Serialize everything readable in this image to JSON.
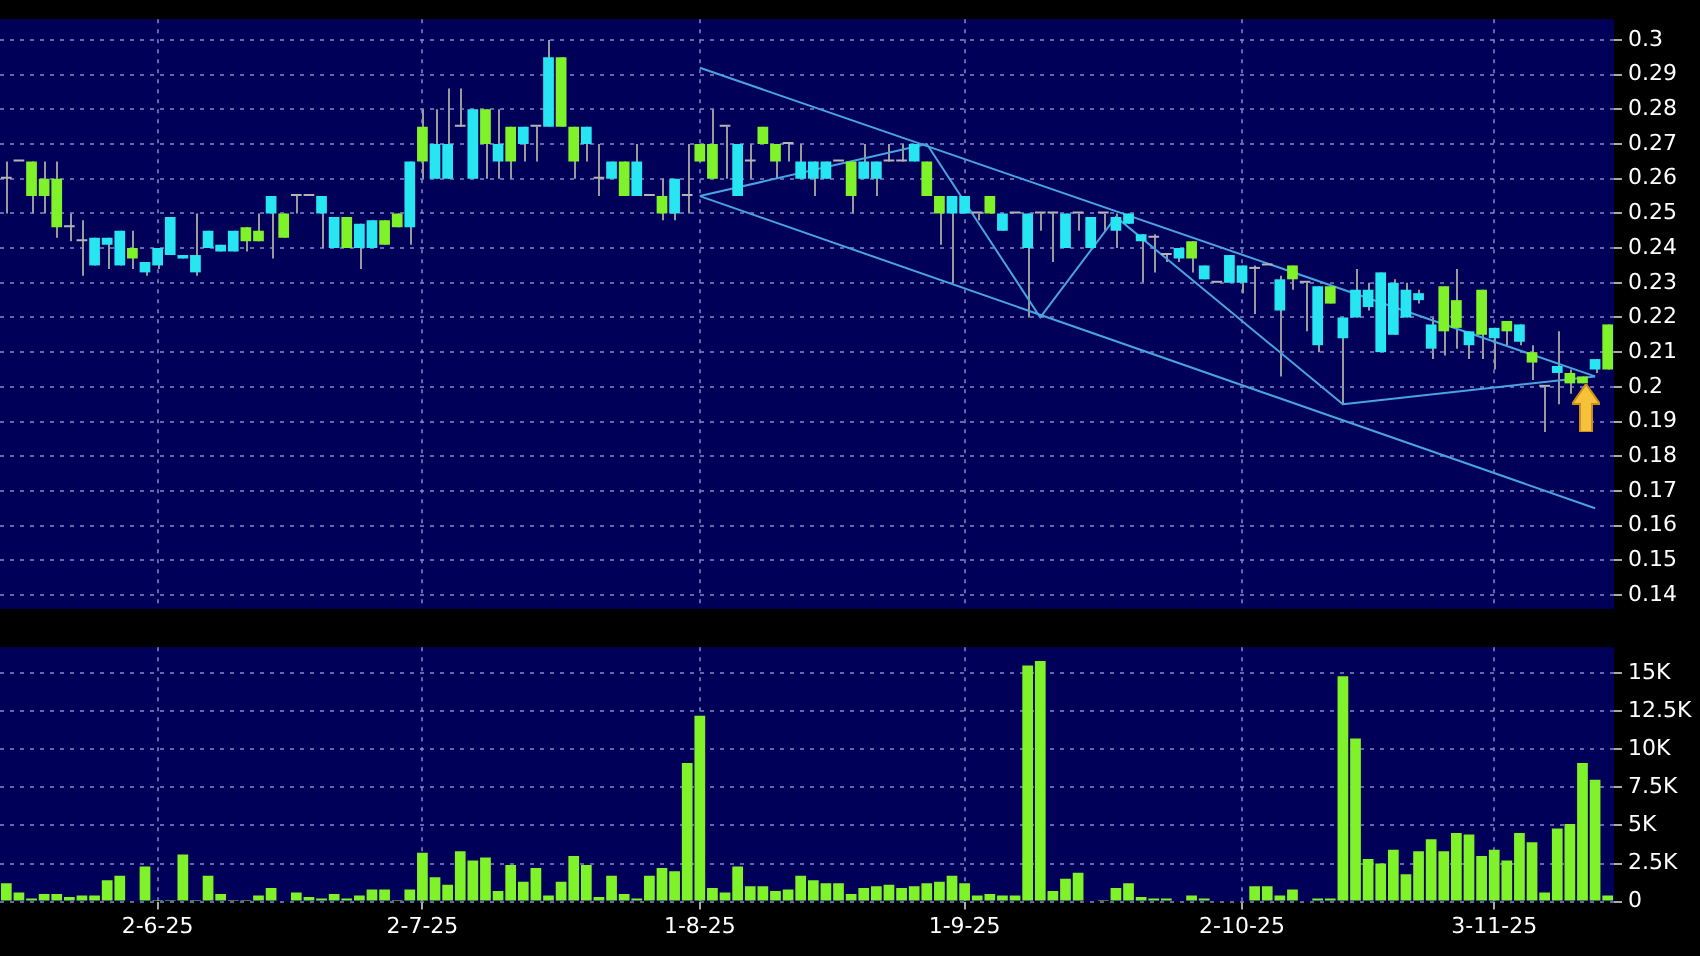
{
  "chart_data": [
    {
      "type": "candlestick",
      "categories": [
        null,
        null,
        null,
        null,
        null,
        null,
        null,
        null,
        null,
        null,
        null,
        null,
        null,
        null,
        null,
        null,
        null,
        null,
        null,
        null,
        null,
        null,
        null,
        null,
        null,
        null,
        null,
        null,
        null,
        null,
        null,
        null,
        null,
        null,
        null,
        null,
        null,
        null,
        null,
        null,
        null,
        null,
        null,
        null,
        null,
        null,
        null,
        null,
        null,
        null,
        null,
        null,
        null,
        null,
        null,
        null,
        null,
        null,
        null,
        null,
        null,
        null,
        null,
        null,
        null,
        null,
        null,
        null,
        null,
        null,
        null,
        null,
        null,
        null,
        null,
        null,
        null,
        null,
        null,
        null,
        null,
        null,
        null,
        null,
        null,
        null,
        null,
        null,
        null,
        null,
        null,
        null,
        null,
        null,
        null,
        null,
        null,
        null,
        null,
        null,
        null,
        null,
        null,
        null,
        null,
        null,
        null,
        null,
        null,
        null,
        null,
        null,
        null,
        null,
        null,
        null,
        null,
        null,
        null,
        null,
        null,
        null,
        null,
        null,
        null,
        null,
        null,
        null
      ],
      "ohlc": [
        [
          0.26,
          0.265,
          0.25,
          0.26
        ],
        [
          0.265,
          0.265,
          0.265,
          0.265
        ],
        [
          0.255,
          0.265,
          0.25,
          0.265
        ],
        [
          0.255,
          0.265,
          0.25,
          0.26
        ],
        [
          0.246,
          0.265,
          0.243,
          0.26
        ],
        [
          0.246,
          0.25,
          0.242,
          0.246
        ],
        [
          0.242,
          0.248,
          0.232,
          0.242
        ],
        [
          0.243,
          0.243,
          0.235,
          0.235
        ],
        [
          0.243,
          0.243,
          0.234,
          0.241
        ],
        [
          0.245,
          0.245,
          0.235,
          0.235
        ],
        [
          0.237,
          0.245,
          0.234,
          0.24
        ],
        [
          0.236,
          0.236,
          0.232,
          0.233
        ],
        [
          0.24,
          0.24,
          0.234,
          0.235
        ],
        [
          0.249,
          0.249,
          0.238,
          0.238
        ],
        [
          0.238,
          0.238,
          0.237,
          0.237
        ],
        [
          0.238,
          0.25,
          0.232,
          0.233
        ],
        [
          0.245,
          0.245,
          0.24,
          0.24
        ],
        [
          0.241,
          0.241,
          0.239,
          0.239
        ],
        [
          0.245,
          0.245,
          0.239,
          0.239
        ],
        [
          0.242,
          0.246,
          0.239,
          0.246
        ],
        [
          0.242,
          0.25,
          0.242,
          0.245
        ],
        [
          0.255,
          0.255,
          0.237,
          0.25
        ],
        [
          0.243,
          0.25,
          0.243,
          0.25
        ],
        [
          0.255,
          0.255,
          0.25,
          0.255
        ],
        [
          0.255,
          0.255,
          0.255,
          0.255
        ],
        [
          0.255,
          0.255,
          0.24,
          0.25
        ],
        [
          0.249,
          0.249,
          0.24,
          0.24
        ],
        [
          0.24,
          0.249,
          0.24,
          0.249
        ],
        [
          0.247,
          0.247,
          0.234,
          0.24
        ],
        [
          0.248,
          0.248,
          0.24,
          0.24
        ],
        [
          0.241,
          0.248,
          0.241,
          0.248
        ],
        [
          0.246,
          0.25,
          0.246,
          0.25
        ],
        [
          0.265,
          0.265,
          0.241,
          0.246
        ],
        [
          0.265,
          0.28,
          0.26,
          0.275
        ],
        [
          0.27,
          0.28,
          0.26,
          0.26
        ],
        [
          0.27,
          0.286,
          0.26,
          0.26
        ],
        [
          0.275,
          0.286,
          0.275,
          0.275
        ],
        [
          0.28,
          0.28,
          0.26,
          0.26
        ],
        [
          0.27,
          0.28,
          0.26,
          0.28
        ],
        [
          0.27,
          0.28,
          0.26,
          0.265
        ],
        [
          0.265,
          0.275,
          0.26,
          0.275
        ],
        [
          0.275,
          0.275,
          0.265,
          0.27
        ],
        [
          0.275,
          0.275,
          0.265,
          0.275
        ],
        [
          0.295,
          0.3,
          0.275,
          0.275
        ],
        [
          0.275,
          0.295,
          0.275,
          0.295
        ],
        [
          0.265,
          0.275,
          0.26,
          0.275
        ],
        [
          0.275,
          0.275,
          0.265,
          0.27
        ],
        [
          0.26,
          0.27,
          0.255,
          0.26
        ],
        [
          0.265,
          0.265,
          0.26,
          0.26
        ],
        [
          0.255,
          0.265,
          0.255,
          0.265
        ],
        [
          0.265,
          0.27,
          0.255,
          0.255
        ],
        [
          0.255,
          0.255,
          0.255,
          0.255
        ],
        [
          0.25,
          0.26,
          0.248,
          0.255
        ],
        [
          0.26,
          0.26,
          0.248,
          0.25
        ],
        [
          0.255,
          0.27,
          0.25,
          0.255
        ],
        [
          0.265,
          0.27,
          0.265,
          0.27
        ],
        [
          0.26,
          0.28,
          0.26,
          0.27
        ],
        [
          0.275,
          0.275,
          0.26,
          0.275
        ],
        [
          0.27,
          0.27,
          0.255,
          0.255
        ],
        [
          0.265,
          0.27,
          0.26,
          0.265
        ],
        [
          0.27,
          0.275,
          0.27,
          0.275
        ],
        [
          0.265,
          0.27,
          0.26,
          0.27
        ],
        [
          0.27,
          0.27,
          0.265,
          0.27
        ],
        [
          0.265,
          0.27,
          0.26,
          0.26
        ],
        [
          0.265,
          0.265,
          0.255,
          0.26
        ],
        [
          0.265,
          0.265,
          0.26,
          0.26
        ],
        [
          0.265,
          0.265,
          0.265,
          0.265
        ],
        [
          0.255,
          0.265,
          0.25,
          0.265
        ],
        [
          0.265,
          0.27,
          0.26,
          0.26
        ],
        [
          0.265,
          0.265,
          0.255,
          0.26
        ],
        [
          0.265,
          0.27,
          0.265,
          0.265
        ],
        [
          0.265,
          0.27,
          0.265,
          0.265
        ],
        [
          0.27,
          0.27,
          0.265,
          0.265
        ],
        [
          0.255,
          0.265,
          0.255,
          0.265
        ],
        [
          0.25,
          0.255,
          0.241,
          0.255
        ],
        [
          0.255,
          0.255,
          0.23,
          0.25
        ],
        [
          0.255,
          0.255,
          0.25,
          0.25
        ],
        [
          0.25,
          0.25,
          0.248,
          0.25
        ],
        [
          0.25,
          0.255,
          0.25,
          0.255
        ],
        [
          0.25,
          0.25,
          0.245,
          0.245
        ],
        [
          0.25,
          0.25,
          0.25,
          0.25
        ],
        [
          0.25,
          0.25,
          0.22,
          0.24
        ],
        [
          0.25,
          0.25,
          0.245,
          0.25
        ],
        [
          0.25,
          0.25,
          0.236,
          0.25
        ],
        [
          0.25,
          0.25,
          0.24,
          0.24
        ],
        [
          0.25,
          0.25,
          0.245,
          0.25
        ],
        [
          0.249,
          0.249,
          0.24,
          0.24
        ],
        [
          0.25,
          0.25,
          0.245,
          0.25
        ],
        [
          0.249,
          0.25,
          0.24,
          0.245
        ],
        [
          0.25,
          0.25,
          0.247,
          0.247
        ],
        [
          0.244,
          0.244,
          0.23,
          0.242
        ],
        [
          0.243,
          0.244,
          0.233,
          0.243
        ],
        [
          0.238,
          0.238,
          0.236,
          0.238
        ],
        [
          0.24,
          0.24,
          0.236,
          0.237
        ],
        [
          0.237,
          0.242,
          0.233,
          0.242
        ],
        [
          0.235,
          0.235,
          0.231,
          0.231
        ],
        [
          0.23,
          0.23,
          0.23,
          0.23
        ],
        [
          0.238,
          0.238,
          0.23,
          0.23
        ],
        [
          0.235,
          0.235,
          0.227,
          0.23
        ],
        [
          0.234,
          0.235,
          0.221,
          0.234
        ],
        [
          0.235,
          0.235,
          0.235,
          0.235
        ],
        [
          0.231,
          0.232,
          0.203,
          0.222
        ],
        [
          0.231,
          0.235,
          0.228,
          0.235
        ],
        [
          0.23,
          0.23,
          0.216,
          0.23
        ],
        [
          0.229,
          0.229,
          0.21,
          0.212
        ],
        [
          0.224,
          0.229,
          0.224,
          0.229
        ],
        [
          0.22,
          0.22,
          0.195,
          0.214
        ],
        [
          0.228,
          0.234,
          0.22,
          0.22
        ],
        [
          0.228,
          0.23,
          0.222,
          0.223
        ],
        [
          0.233,
          0.233,
          0.21,
          0.21
        ],
        [
          0.23,
          0.231,
          0.215,
          0.215
        ],
        [
          0.228,
          0.23,
          0.22,
          0.22
        ],
        [
          0.227,
          0.228,
          0.224,
          0.225
        ],
        [
          0.218,
          0.22,
          0.208,
          0.211
        ],
        [
          0.216,
          0.229,
          0.209,
          0.229
        ],
        [
          0.217,
          0.234,
          0.211,
          0.225
        ],
        [
          0.216,
          0.216,
          0.208,
          0.212
        ],
        [
          0.215,
          0.228,
          0.208,
          0.228
        ],
        [
          0.217,
          0.217,
          0.205,
          0.214
        ],
        [
          0.216,
          0.219,
          0.212,
          0.219
        ],
        [
          0.218,
          0.218,
          0.212,
          0.213
        ],
        [
          0.207,
          0.212,
          0.202,
          0.21
        ],
        [
          0.2,
          0.2,
          0.187,
          0.2
        ],
        [
          0.206,
          0.216,
          0.195,
          0.204
        ],
        [
          0.201,
          0.205,
          0.198,
          0.204
        ],
        [
          0.201,
          0.203,
          0.201,
          0.203
        ],
        [
          0.208,
          0.208,
          0.204,
          0.205
        ],
        [
          0.205,
          0.218,
          0.205,
          0.218
        ]
      ],
      "colors": [
        "#b4b4b4",
        "#b4b4b4",
        "#7ff22a",
        "#7ff22a",
        "#7ff22a",
        "#b4b4b4",
        "#b4b4b4",
        "#27e6f2",
        "#27e6f2",
        "#27e6f2",
        "#7ff22a",
        "#27e6f2",
        "#27e6f2",
        "#27e6f2",
        "#27e6f2",
        "#27e6f2",
        "#27e6f2",
        "#27e6f2",
        "#27e6f2",
        "#7ff22a",
        "#7ff22a",
        "#27e6f2",
        "#7ff22a",
        "#b4b4b4",
        "#b4b4b4",
        "#27e6f2",
        "#27e6f2",
        "#7ff22a",
        "#27e6f2",
        "#27e6f2",
        "#7ff22a",
        "#7ff22a",
        "#27e6f2",
        "#7ff22a",
        "#27e6f2",
        "#27e6f2",
        "#b4b4b4",
        "#27e6f2",
        "#7ff22a",
        "#27e6f2",
        "#7ff22a",
        "#27e6f2",
        "#b4b4b4",
        "#27e6f2",
        "#7ff22a",
        "#7ff22a",
        "#27e6f2",
        "#b4b4b4",
        "#27e6f2",
        "#7ff22a",
        "#27e6f2",
        "#b4b4b4",
        "#7ff22a",
        "#27e6f2",
        "#b4b4b4",
        "#7ff22a",
        "#7ff22a",
        "#b4b4b4",
        "#27e6f2",
        "#b4b4b4",
        "#7ff22a",
        "#7ff22a",
        "#b4b4b4",
        "#27e6f2",
        "#27e6f2",
        "#27e6f2",
        "#b4b4b4",
        "#7ff22a",
        "#27e6f2",
        "#27e6f2",
        "#b4b4b4",
        "#b4b4b4",
        "#27e6f2",
        "#7ff22a",
        "#7ff22a",
        "#27e6f2",
        "#27e6f2",
        "#b4b4b4",
        "#7ff22a",
        "#27e6f2",
        "#b4b4b4",
        "#27e6f2",
        "#b4b4b4",
        "#b4b4b4",
        "#27e6f2",
        "#b4b4b4",
        "#27e6f2",
        "#b4b4b4",
        "#27e6f2",
        "#27e6f2",
        "#27e6f2",
        "#b4b4b4",
        "#b4b4b4",
        "#27e6f2",
        "#7ff22a",
        "#27e6f2",
        "#b4b4b4",
        "#27e6f2",
        "#27e6f2",
        "#b4b4b4",
        "#b4b4b4",
        "#27e6f2",
        "#7ff22a",
        "#b4b4b4",
        "#27e6f2",
        "#7ff22a",
        "#27e6f2",
        "#27e6f2",
        "#27e6f2",
        "#27e6f2",
        "#27e6f2",
        "#27e6f2",
        "#27e6f2",
        "#27e6f2",
        "#7ff22a",
        "#7ff22a",
        "#27e6f2",
        "#7ff22a",
        "#27e6f2",
        "#7ff22a",
        "#27e6f2",
        "#7ff22a",
        "#b4b4b4",
        "#27e6f2",
        "#7ff22a",
        "#7ff22a",
        "#27e6f2",
        "#7ff22a"
      ],
      "series": [
        {
          "type": "line",
          "color": "#4aa3df",
          "values": [
            null,
            null,
            null,
            null,
            null,
            null,
            null,
            null,
            null,
            null,
            null,
            null,
            null,
            null,
            null,
            null,
            null,
            null,
            null,
            null,
            null,
            null,
            null,
            null,
            null,
            null,
            null,
            null,
            null,
            null,
            null,
            null,
            null,
            null,
            null,
            null,
            null,
            null,
            null,
            null,
            null,
            null,
            null,
            null,
            null,
            null,
            null,
            null,
            null,
            null,
            null,
            null,
            null,
            null,
            null,
            0.292,
            null,
            null,
            null,
            null,
            null,
            null,
            null,
            null,
            null,
            null,
            null,
            null,
            null,
            null,
            null,
            null,
            null,
            null,
            null,
            null,
            null,
            null,
            null,
            null,
            null,
            null,
            null,
            null,
            null,
            null,
            null,
            null,
            null,
            null,
            null,
            null,
            null,
            null,
            null,
            null,
            null,
            null,
            null,
            null,
            null,
            null,
            null,
            null,
            null,
            null,
            null,
            null,
            null,
            null,
            null,
            null,
            null,
            null,
            null,
            null,
            null,
            null,
            null,
            null,
            null,
            null,
            null,
            null,
            null,
            null,
            0.203,
            null
          ]
        },
        {
          "type": "line",
          "color": "#4aa3df",
          "values": [
            null,
            null,
            null,
            null,
            null,
            null,
            null,
            null,
            null,
            null,
            null,
            null,
            null,
            null,
            null,
            null,
            null,
            null,
            null,
            null,
            null,
            null,
            null,
            null,
            null,
            null,
            null,
            null,
            null,
            null,
            null,
            null,
            null,
            null,
            null,
            null,
            null,
            null,
            null,
            null,
            null,
            null,
            null,
            null,
            null,
            null,
            null,
            null,
            null,
            null,
            null,
            null,
            null,
            null,
            null,
            0.255,
            null,
            null,
            null,
            null,
            null,
            null,
            null,
            null,
            null,
            null,
            null,
            null,
            null,
            null,
            null,
            null,
            null,
            null,
            null,
            null,
            null,
            null,
            null,
            null,
            null,
            null,
            null,
            null,
            null,
            null,
            null,
            null,
            null,
            null,
            null,
            null,
            null,
            null,
            null,
            null,
            null,
            null,
            null,
            null,
            null,
            null,
            null,
            null,
            null,
            null,
            null,
            null,
            null,
            null,
            null,
            null,
            null,
            null,
            null,
            null,
            null,
            null,
            null,
            null,
            null,
            null,
            null,
            null,
            null,
            null,
            0.165,
            null
          ]
        },
        {
          "type": "line",
          "color": "#4aa3df",
          "values": [
            null,
            null,
            null,
            null,
            null,
            null,
            null,
            null,
            null,
            null,
            null,
            null,
            null,
            null,
            null,
            null,
            null,
            null,
            null,
            null,
            null,
            null,
            null,
            null,
            null,
            null,
            null,
            null,
            null,
            null,
            null,
            null,
            null,
            null,
            null,
            null,
            null,
            null,
            null,
            null,
            null,
            null,
            null,
            null,
            null,
            null,
            null,
            null,
            null,
            null,
            null,
            null,
            null,
            null,
            null,
            0.255,
            null,
            null,
            null,
            null,
            null,
            null,
            null,
            null,
            null,
            null,
            null,
            null,
            null,
            null,
            null,
            null,
            null,
            0.27,
            null,
            null,
            null,
            null,
            null,
            null,
            null,
            null,
            0.22,
            null,
            null,
            null,
            null,
            null,
            0.249,
            null,
            null,
            null,
            null,
            null,
            null,
            null,
            null,
            null,
            null,
            null,
            null,
            null,
            null,
            null,
            null,
            null,
            0.195,
            null,
            null,
            null,
            null,
            null,
            null,
            null,
            null,
            null,
            null,
            null,
            null,
            null,
            null,
            null,
            null,
            null,
            null,
            null,
            0.203,
            null
          ]
        }
      ],
      "ylim": [
        0.136,
        0.306
      ],
      "yticks": [
        0.14,
        0.15,
        0.16,
        0.17,
        0.18,
        0.19,
        0.2,
        0.21,
        0.22,
        0.23,
        0.24,
        0.25,
        0.26,
        0.27,
        0.28,
        0.29,
        0.3
      ],
      "grid": true,
      "tick_labels": "y"
    },
    {
      "type": "bar",
      "categories": [
        null,
        null,
        null,
        null,
        null,
        null,
        null,
        null,
        null,
        null,
        null,
        null,
        "2-6-25",
        null,
        null,
        null,
        null,
        null,
        null,
        null,
        null,
        null,
        null,
        null,
        null,
        null,
        null,
        null,
        null,
        null,
        null,
        null,
        null,
        "2-7-25",
        null,
        null,
        null,
        null,
        null,
        null,
        null,
        null,
        null,
        null,
        null,
        null,
        null,
        null,
        null,
        null,
        null,
        null,
        null,
        null,
        null,
        "1-8-25",
        null,
        null,
        null,
        null,
        null,
        null,
        null,
        null,
        null,
        null,
        null,
        null,
        null,
        null,
        null,
        null,
        null,
        null,
        null,
        null,
        "1-9-25",
        null,
        null,
        null,
        null,
        null,
        null,
        null,
        null,
        null,
        null,
        null,
        null,
        null,
        null,
        null,
        null,
        null,
        null,
        null,
        null,
        null,
        "2-10-25",
        null,
        null,
        null,
        null,
        null,
        null,
        null,
        null,
        null,
        null,
        null,
        null,
        null,
        null,
        null,
        null,
        null,
        null,
        null,
        "3-11-25",
        null,
        null,
        null,
        null,
        null,
        null,
        null,
        null,
        null
      ],
      "values": [
        1200,
        600,
        200,
        500,
        500,
        300,
        400,
        400,
        1400,
        1700,
        0,
        2300,
        100,
        100,
        3100,
        100,
        1700,
        500,
        100,
        100,
        400,
        900,
        0,
        600,
        300,
        200,
        500,
        200,
        400,
        800,
        800,
        100,
        800,
        3200,
        1600,
        1100,
        3300,
        2700,
        2900,
        700,
        2400,
        1300,
        2200,
        400,
        1300,
        3000,
        2400,
        300,
        1700,
        500,
        200,
        1700,
        2200,
        2000,
        9100,
        12200,
        900,
        600,
        2300,
        1000,
        1000,
        700,
        800,
        1700,
        1400,
        1200,
        1200,
        500,
        900,
        1000,
        1100,
        900,
        1000,
        1200,
        1300,
        1700,
        1200,
        400,
        500,
        400,
        400,
        15500,
        15800,
        700,
        1500,
        1900,
        0,
        100,
        900,
        1200,
        300,
        200,
        200,
        0,
        400,
        200,
        0,
        0,
        0,
        1000,
        1000,
        400,
        800,
        0,
        200,
        200,
        14800,
        10700,
        2800,
        2500,
        3400,
        1800,
        3300,
        4100,
        3300,
        4500,
        4400,
        3000,
        3400,
        2700,
        4500,
        3900,
        600,
        4800,
        5100,
        9100,
        8000,
        400
      ],
      "color": "#7ff22a",
      "ylim": [
        0,
        16700
      ],
      "yticks": [
        0,
        {
          "value": 2500,
          "label": "2.5K"
        },
        {
          "value": 5000,
          "label": "5K"
        },
        {
          "value": 7500,
          "label": "7.5K"
        },
        {
          "value": 10000,
          "label": "10K"
        },
        {
          "value": 12500,
          "label": "12.5K"
        },
        {
          "value": 15000,
          "label": "15K"
        }
      ],
      "grid": true
    }
  ]
}
